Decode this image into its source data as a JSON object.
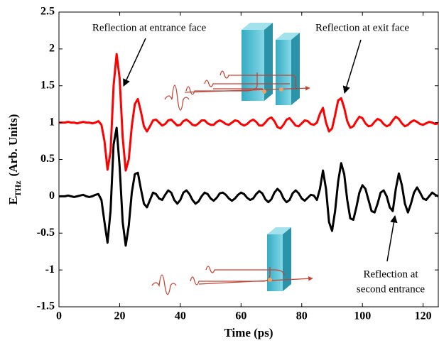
{
  "chart_data": {
    "type": "line",
    "xlabel": "Time (ps)",
    "ylabel": [
      "E",
      "THz",
      "(Arb. Units)"
    ],
    "xlim": [
      0,
      125
    ],
    "ylim": [
      -1.5,
      2.5
    ],
    "xticks": [
      0,
      20,
      40,
      60,
      80,
      100,
      120
    ],
    "yticks": [
      -1.5,
      -1,
      -0.5,
      0,
      0.5,
      1,
      1.5,
      2,
      2.5
    ],
    "annotations": [
      {
        "text": [
          "Reflection at entrance face"
        ]
      },
      {
        "text": [
          "Reflection at exit face"
        ]
      },
      {
        "text": [
          "Reflection at",
          "second entrance"
        ]
      }
    ],
    "x": [
      0,
      1,
      2,
      3,
      4,
      5,
      6,
      7,
      8,
      9,
      10,
      11,
      12,
      13,
      14,
      15,
      16,
      17,
      18,
      19,
      20,
      21,
      22,
      23,
      24,
      25,
      26,
      27,
      28,
      29,
      30,
      31,
      32,
      33,
      34,
      35,
      36,
      37,
      38,
      39,
      40,
      41,
      42,
      43,
      44,
      45,
      46,
      47,
      48,
      49,
      50,
      51,
      52,
      53,
      54,
      55,
      56,
      57,
      58,
      59,
      60,
      61,
      62,
      63,
      64,
      65,
      66,
      67,
      68,
      69,
      70,
      71,
      72,
      73,
      74,
      75,
      76,
      77,
      78,
      79,
      80,
      81,
      82,
      83,
      84,
      85,
      86,
      87,
      88,
      89,
      90,
      91,
      92,
      93,
      94,
      95,
      96,
      97,
      98,
      99,
      100,
      101,
      102,
      103,
      104,
      105,
      106,
      107,
      108,
      109,
      110,
      111,
      112,
      113,
      114,
      115,
      116,
      117,
      118,
      119,
      120,
      121,
      122,
      123,
      124,
      125
    ],
    "series": [
      {
        "color": "#ff0000",
        "values": [
          1.0,
          1.0,
          1.0,
          1.01,
          1.0,
          1.0,
          0.99,
          1.0,
          1.01,
          1.0,
          1.0,
          0.99,
          1.0,
          1.02,
          0.97,
          0.75,
          0.36,
          0.6,
          1.5,
          1.93,
          1.6,
          0.8,
          0.35,
          0.5,
          0.95,
          1.25,
          1.32,
          1.15,
          0.95,
          0.88,
          0.95,
          1.03,
          1.04,
          1.0,
          0.96,
          0.98,
          1.03,
          1.04,
          1.0,
          0.96,
          0.97,
          1.02,
          1.04,
          1.01,
          0.97,
          0.96,
          0.99,
          1.03,
          1.03,
          0.99,
          0.97,
          0.97,
          1.01,
          1.03,
          1.01,
          0.98,
          0.97,
          1.0,
          1.03,
          1.02,
          0.98,
          0.96,
          0.98,
          1.02,
          1.04,
          1.01,
          0.96,
          0.96,
          1.0,
          1.05,
          1.07,
          1.02,
          0.94,
          0.92,
          0.97,
          1.04,
          1.06,
          1.01,
          0.96,
          0.95,
          0.99,
          1.03,
          1.02,
          0.98,
          0.97,
          1.0,
          1.12,
          1.2,
          1.0,
          0.88,
          0.92,
          1.1,
          1.3,
          1.33,
          1.2,
          1.02,
          0.93,
          0.95,
          1.02,
          1.08,
          1.06,
          0.99,
          0.95,
          0.96,
          1.01,
          1.05,
          1.03,
          0.98,
          0.95,
          0.97,
          1.03,
          1.08,
          1.05,
          0.99,
          0.95,
          0.97,
          1.01,
          1.03,
          1.01,
          0.98,
          0.97,
          0.99,
          1.01,
          1.0,
          0.98,
          0.99
        ]
      },
      {
        "color": "#000000",
        "values": [
          0,
          0,
          0,
          0.01,
          0,
          -0.01,
          0,
          0.01,
          0.02,
          0,
          -0.01,
          0,
          0.02,
          0.03,
          -0.05,
          -0.35,
          -0.63,
          -0.2,
          0.7,
          0.93,
          0.4,
          -0.35,
          -0.67,
          -0.4,
          0.05,
          0.3,
          0.32,
          0.1,
          -0.1,
          -0.15,
          -0.05,
          0.05,
          0.03,
          -0.03,
          -0.05,
          0.02,
          0.08,
          0.05,
          -0.05,
          -0.1,
          -0.05,
          0.05,
          0.08,
          0.03,
          -0.05,
          -0.1,
          -0.07,
          0,
          0.05,
          0.03,
          -0.03,
          -0.06,
          -0.02,
          0.04,
          0.05,
          0.02,
          -0.03,
          -0.06,
          -0.03,
          0.02,
          0.05,
          0.03,
          -0.02,
          -0.05,
          -0.03,
          0.03,
          0.07,
          0.04,
          -0.04,
          -0.08,
          -0.04,
          0.05,
          0.1,
          0.06,
          -0.03,
          -0.08,
          -0.05,
          0.04,
          0.08,
          0.04,
          -0.03,
          -0.06,
          -0.02,
          0.02,
          0.01,
          -0.05,
          0.1,
          0.35,
          0.1,
          -0.35,
          -0.47,
          -0.2,
          0.2,
          0.45,
          0.3,
          -0.05,
          -0.3,
          -0.32,
          -0.15,
          0.05,
          0.15,
          0.1,
          -0.05,
          -0.2,
          -0.22,
          -0.1,
          0.05,
          0.08,
          0,
          -0.15,
          -0.2,
          0.1,
          0.31,
          0.15,
          -0.1,
          -0.22,
          -0.1,
          0.05,
          0.12,
          0.05,
          -0.03,
          -0.05,
          0,
          0.05,
          0.02,
          0
        ]
      }
    ]
  }
}
